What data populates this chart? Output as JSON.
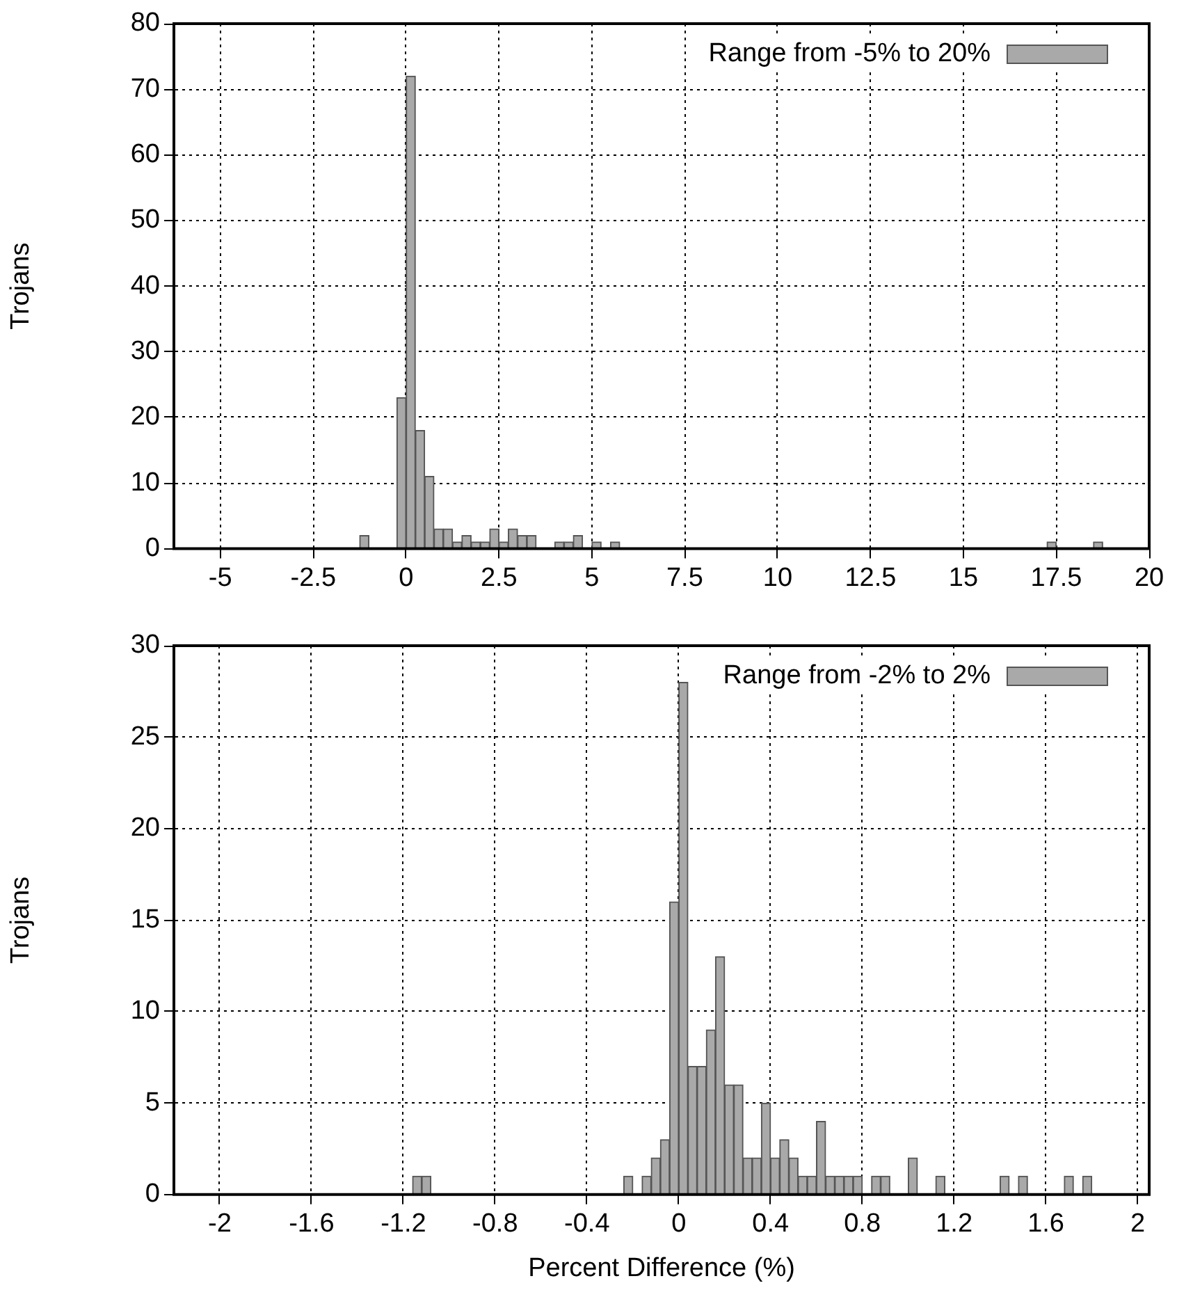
{
  "chart_data": [
    {
      "type": "histogram",
      "ylabel": "Trojans",
      "legend": "top right",
      "grid": true,
      "bins": [
        -1.25,
        -1,
        -0.75,
        -0.5,
        -0.25,
        0,
        0.25,
        0.5,
        0.75,
        1,
        1.25,
        1.5,
        1.75,
        2,
        2.25,
        2.5,
        2.75,
        3,
        3.25,
        3.5,
        3.75,
        4,
        4.25,
        4.5,
        4.75,
        5,
        5.25,
        5.5,
        5.75,
        6,
        6.25,
        6.5,
        6.75,
        7,
        7.25,
        7.5,
        7.75,
        8,
        8.25,
        8.5,
        8.75,
        9,
        9.25,
        9.5,
        9.75,
        10,
        10.25,
        10.5,
        10.75,
        11,
        11.25,
        11.5,
        11.75,
        12,
        12.25,
        12.5,
        12.75,
        13,
        13.25,
        13.5,
        13.75,
        14,
        14.25,
        14.5,
        14.75,
        15,
        15.25,
        15.5,
        15.75,
        16,
        16.25,
        16.5,
        16.75,
        17,
        17.25,
        17.5,
        17.75,
        18,
        18.25,
        18.5,
        18.75
      ],
      "series": [
        {
          "name": "Range from -5% to 20%",
          "color": "#a9a9a9",
          "values": [
            2,
            0,
            0,
            0,
            23,
            72,
            18,
            11,
            3,
            3,
            1,
            2,
            1,
            1,
            3,
            1,
            3,
            2,
            2,
            0,
            0,
            1,
            1,
            2,
            0,
            1,
            0,
            1,
            0,
            0,
            0,
            0,
            0,
            0,
            0,
            0,
            0,
            0,
            0,
            0,
            0,
            0,
            0,
            0,
            0,
            0,
            0,
            0,
            0,
            0,
            0,
            0,
            0,
            0,
            0,
            0,
            0,
            0,
            0,
            0,
            0,
            0,
            0,
            0,
            0,
            0,
            0,
            0,
            0,
            0,
            0,
            0,
            0,
            0,
            1,
            0,
            0,
            0,
            0,
            1
          ]
        }
      ],
      "xlim": [
        -6.25,
        20
      ],
      "xticks": [
        -5,
        -2.5,
        0,
        2.5,
        5,
        7.5,
        10,
        12.5,
        15,
        17.5,
        20
      ],
      "ylim": [
        0,
        80
      ],
      "yticks": [
        0,
        10,
        20,
        30,
        40,
        50,
        60,
        70,
        80
      ]
    },
    {
      "type": "histogram",
      "ylabel": "Trojans",
      "xlabel": "Percent Difference (%)",
      "legend": "top right",
      "grid": true,
      "bins": [
        -1.16,
        -1.12,
        -1.08,
        -1.04,
        -1,
        -0.96,
        -0.92,
        -0.88,
        -0.84,
        -0.8,
        -0.76,
        -0.72,
        -0.68,
        -0.64,
        -0.6,
        -0.56,
        -0.52,
        -0.48,
        -0.44,
        -0.4,
        -0.36,
        -0.32,
        -0.28,
        -0.24,
        -0.2,
        -0.16,
        -0.12,
        -0.08,
        -0.04,
        0,
        0.04,
        0.08,
        0.12,
        0.16,
        0.2,
        0.24,
        0.28,
        0.32,
        0.36,
        0.4,
        0.44,
        0.48,
        0.52,
        0.56,
        0.6,
        0.64,
        0.68,
        0.72,
        0.76,
        0.8,
        0.84,
        0.88,
        0.92,
        0.96,
        1,
        1.04,
        1.08,
        1.12,
        1.16,
        1.2,
        1.24,
        1.28,
        1.32,
        1.36,
        1.4,
        1.44,
        1.48,
        1.52,
        1.56,
        1.6,
        1.64,
        1.68,
        1.72,
        1.76,
        1.8
      ],
      "series": [
        {
          "name": "Range from -2% to 2%",
          "color": "#a9a9a9",
          "values": [
            1,
            1,
            0,
            0,
            0,
            0,
            0,
            0,
            0,
            0,
            0,
            0,
            0,
            0,
            0,
            0,
            0,
            0,
            0,
            0,
            0,
            0,
            0,
            1,
            0,
            1,
            2,
            3,
            16,
            28,
            7,
            7,
            9,
            13,
            6,
            6,
            2,
            2,
            5,
            2,
            3,
            2,
            1,
            1,
            4,
            1,
            1,
            1,
            1,
            0,
            1,
            1,
            0,
            0,
            2,
            0,
            0,
            1,
            0,
            0,
            0,
            0,
            0,
            0,
            1,
            0,
            1,
            0,
            0,
            0,
            0,
            1,
            0,
            1
          ]
        }
      ],
      "xlim": [
        -2.2,
        2.05
      ],
      "xticks": [
        -2,
        -1.6,
        -1.2,
        -0.8,
        -0.4,
        0,
        0.4,
        0.8,
        1.2,
        1.6,
        2
      ],
      "ylim": [
        0,
        30
      ],
      "yticks": [
        0,
        5,
        10,
        15,
        20,
        25,
        30
      ]
    }
  ]
}
